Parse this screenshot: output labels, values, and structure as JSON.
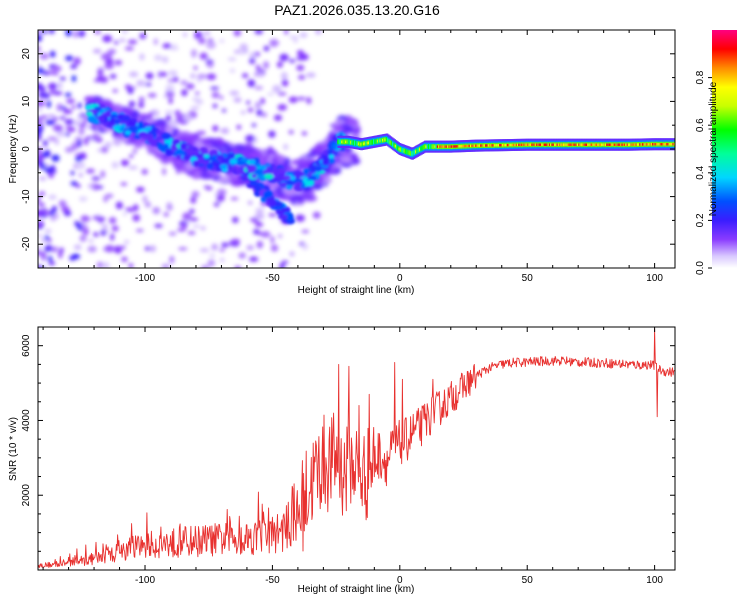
{
  "figure_title": "PAZ1.2026.035.13.20.G16",
  "colors": {
    "snr_line": "#e8312f",
    "spectrogram_bg": "#ffffff"
  },
  "chart_data": [
    {
      "type": "heatmap",
      "name": "spectrogram",
      "title": "PAZ1.2026.035.13.20.G16",
      "xlabel": "Height of straight line (km)",
      "ylabel": "Frequency (Hz)",
      "xlim": [
        -142,
        108
      ],
      "ylim": [
        -25,
        25
      ],
      "xticks": [
        -100,
        -50,
        0,
        50,
        100
      ],
      "yticks": [
        -20,
        -10,
        0,
        10,
        20
      ],
      "ridge": {
        "x": [
          -122,
          -115,
          -108,
          -100,
          -93,
          -86,
          -79,
          -72,
          -66,
          -60,
          -55,
          -50,
          -44,
          -38,
          -33,
          -28,
          -24,
          -20,
          -15,
          -10,
          -5,
          0,
          5,
          10,
          20,
          30,
          40,
          50,
          60,
          70,
          80,
          90,
          100,
          108
        ],
        "y": [
          7.5,
          7.0,
          5.0,
          3.5,
          1.5,
          -0.5,
          -1.5,
          -2.5,
          -3.0,
          -3.5,
          -4.5,
          -5.0,
          -6.5,
          -7.0,
          -5.0,
          -1.5,
          1.5,
          1.5,
          1.0,
          1.5,
          2.0,
          0.0,
          -1.0,
          0.5,
          0.5,
          0.7,
          0.8,
          0.9,
          0.9,
          0.9,
          0.9,
          0.9,
          1.0,
          1.0
        ]
      },
      "colorbar": {
        "label": "Normalized spectral amplitude",
        "range": [
          0,
          1
        ],
        "ticks": [
          "0.0",
          "0.2",
          "0.4",
          "0.6",
          "0.8"
        ],
        "tick_values": [
          0.0,
          0.2,
          0.4,
          0.6,
          0.8
        ]
      }
    },
    {
      "type": "line",
      "name": "snr",
      "xlabel": "Height of straight line (km)",
      "ylabel": "SNR (10 * v/v)",
      "xlim": [
        -142,
        108
      ],
      "ylim": [
        0,
        6500
      ],
      "xticks": [
        -100,
        -50,
        0,
        50,
        100
      ],
      "yticks": [
        2000,
        4000,
        6000
      ],
      "series": [
        {
          "name": "SNR",
          "x": [
            -142,
            -135,
            -130,
            -125,
            -120,
            -115,
            -110,
            -105,
            -100,
            -95,
            -90,
            -85,
            -80,
            -75,
            -70,
            -65,
            -60,
            -55,
            -50,
            -45,
            -40,
            -38,
            -35,
            -32,
            -30,
            -28,
            -25,
            -22,
            -20,
            -18,
            -15,
            -12,
            -10,
            -8,
            -5,
            -3,
            0,
            3,
            5,
            8,
            10,
            15,
            20,
            25,
            30,
            35,
            40,
            45,
            50,
            55,
            60,
            65,
            70,
            75,
            80,
            85,
            90,
            95,
            98,
            100,
            102,
            105,
            108
          ],
          "y": [
            120,
            150,
            200,
            250,
            300,
            380,
            480,
            580,
            650,
            700,
            720,
            760,
            780,
            800,
            820,
            850,
            870,
            900,
            950,
            1100,
            1400,
            1800,
            2300,
            2700,
            2900,
            2800,
            3000,
            2600,
            2700,
            2900,
            2500,
            2600,
            2900,
            3100,
            2900,
            3200,
            3400,
            3500,
            3700,
            3800,
            4000,
            4300,
            4600,
            4900,
            5200,
            5400,
            5500,
            5550,
            5560,
            5580,
            5600,
            5590,
            5560,
            5550,
            5540,
            5520,
            5500,
            5480,
            5500,
            5450,
            5350,
            5300,
            5300
          ],
          "spikes": [
            [
              -24,
              5500
            ],
            [
              -20,
              5450
            ],
            [
              -16,
              4400
            ],
            [
              -12,
              4700
            ],
            [
              -2,
              5550
            ],
            [
              1,
              5100
            ],
            [
              13,
              5100
            ],
            [
              100,
              6450
            ],
            [
              101,
              4100
            ]
          ]
        }
      ]
    }
  ]
}
